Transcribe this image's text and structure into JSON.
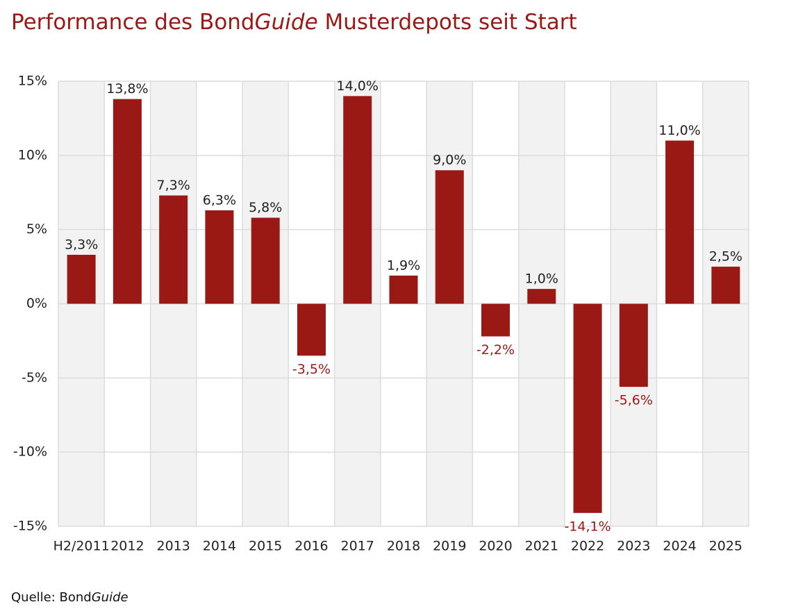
{
  "chart_data": {
    "type": "bar",
    "title": [
      "Performance des Bond",
      "Guide",
      " Musterdepots seit Start"
    ],
    "source": [
      "Quelle: Bond",
      "Guide"
    ],
    "categories": [
      "H2/2011",
      "2012",
      "2013",
      "2014",
      "2015",
      "2016",
      "2017",
      "2018",
      "2019",
      "2020",
      "2021",
      "2022",
      "2023",
      "2024",
      "2025"
    ],
    "values": [
      3.3,
      13.8,
      7.3,
      6.3,
      5.8,
      -3.5,
      14.0,
      1.9,
      9.0,
      -2.2,
      1.0,
      -14.1,
      -5.6,
      11.0,
      2.5
    ],
    "value_labels": [
      "3,3%",
      "13,8%",
      "7,3%",
      "6,3%",
      "5,8%",
      "-3,5%",
      "14,0%",
      "1,9%",
      "9,0%",
      "-2,2%",
      "1,0%",
      "-14,1%",
      "-5,6%",
      "11,0%",
      "2,5%"
    ],
    "color": "#9a1915",
    "ylim": [
      -15,
      15
    ],
    "yticks": [
      {
        "value": -15,
        "label": "-15%"
      },
      {
        "value": -10,
        "label": "-10%"
      },
      {
        "value": -5,
        "label": "-5%"
      },
      {
        "value": 0,
        "label": "0%"
      },
      {
        "value": 5,
        "label": "5%"
      },
      {
        "value": 10,
        "label": "10%"
      },
      {
        "value": 15,
        "label": "15%"
      }
    ],
    "grid": true
  }
}
